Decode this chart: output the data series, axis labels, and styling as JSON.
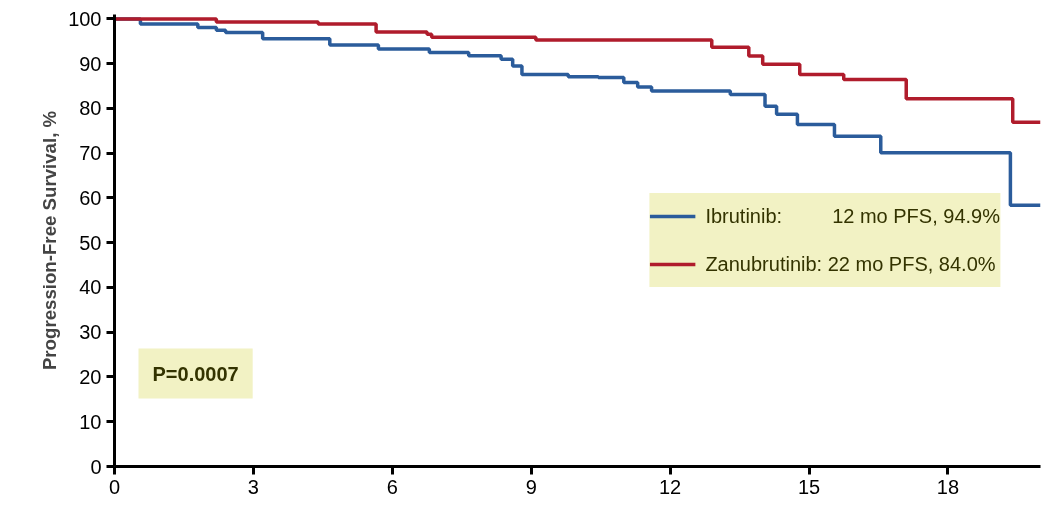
{
  "chart_data": {
    "type": "step",
    "ylabel": "Progression-Free Survival, %",
    "xlim": [
      0,
      20
    ],
    "xticks": [
      0,
      3,
      6,
      9,
      12,
      15,
      18
    ],
    "ylim": [
      0,
      101
    ],
    "yticks": [
      0,
      10,
      20,
      30,
      40,
      50,
      60,
      70,
      80,
      90,
      100
    ],
    "grid": false,
    "legend": "right",
    "line_style": "solid",
    "marker": "none",
    "series": [
      {
        "name": "Ibrutinib:         12 mo PFS, 94.9%",
        "color": "#2b5c9b",
        "x": [
          0,
          0.56,
          1.8,
          2.2,
          2.4,
          3.2,
          4.65,
          5.7,
          6.8,
          7.65,
          8.35,
          8.6,
          8.8,
          9.8,
          10.45,
          11.0,
          11.3,
          11.6,
          13.3,
          14.05,
          14.3,
          14.75,
          15.55,
          16.55,
          19.35,
          20
        ],
        "values": [
          100,
          98.9,
          98.1,
          97.5,
          97.0,
          95.6,
          94.2,
          93.3,
          92.5,
          91.8,
          91.0,
          89.5,
          87.6,
          87.1,
          86.9,
          85.8,
          84.8,
          83.9,
          83.1,
          80.5,
          78.7,
          76.4,
          73.8,
          70.1,
          58.4,
          58.4
        ]
      },
      {
        "name": "Zanubrutinib: 22 mo PFS, 84.0%",
        "color": "#b01c2c",
        "x": [
          0,
          2.2,
          4.4,
          5.65,
          6.75,
          6.85,
          9.1,
          12.9,
          13.7,
          14.0,
          14.8,
          15.75,
          17.1,
          19.4,
          20
        ],
        "values": [
          100,
          99.3,
          98.9,
          97.1,
          96.6,
          95.9,
          95.3,
          93.7,
          91.7,
          89.9,
          87.6,
          86.5,
          82.2,
          76.9,
          76.9
        ]
      }
    ],
    "annotations": [
      "P=0.0007"
    ]
  }
}
